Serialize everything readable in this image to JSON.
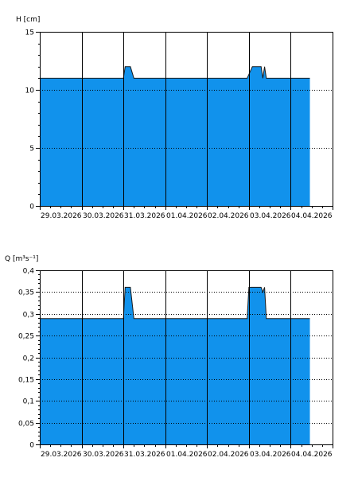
{
  "colors": {
    "fill": "#1192ec",
    "outline": "#1a1a1a",
    "frame": "#000000",
    "grid": "#000000"
  },
  "chart_data": [
    {
      "id": "h",
      "type": "area",
      "title": "",
      "ylabel": "H [cm]",
      "xlabel": "",
      "ylim": [
        0,
        15
      ],
      "xlim": [
        "2026-03-29",
        "2026-04-05"
      ],
      "y_ticks": [
        {
          "value": 0,
          "label": "0"
        },
        {
          "value": 5,
          "label": "5"
        },
        {
          "value": 10,
          "label": "10"
        },
        {
          "value": 15,
          "label": "15"
        }
      ],
      "minor_tick_step": 1,
      "x_ticks": [
        {
          "date": "2026-03-29",
          "label": "29.03.2026"
        },
        {
          "date": "2026-03-30",
          "label": "30.03.2026"
        },
        {
          "date": "2026-03-31",
          "label": "31.03.2026"
        },
        {
          "date": "2026-04-01",
          "label": "01.04.2026"
        },
        {
          "date": "2026-04-02",
          "label": "02.04.2026"
        },
        {
          "date": "2026-04-03",
          "label": "03.04.2026"
        },
        {
          "date": "2026-04-04",
          "label": "04.04.2026"
        }
      ],
      "grid_x": "solid",
      "grid_y": "dotted",
      "points": [
        {
          "x": "2026-03-29 00:00",
          "y": 11
        },
        {
          "x": "2026-03-31 00:00",
          "y": 11
        },
        {
          "x": "2026-03-31 01:00",
          "y": 12
        },
        {
          "x": "2026-03-31 04:00",
          "y": 12
        },
        {
          "x": "2026-03-31 06:00",
          "y": 11
        },
        {
          "x": "2026-04-02 23:00",
          "y": 11
        },
        {
          "x": "2026-04-03 02:00",
          "y": 12
        },
        {
          "x": "2026-04-03 07:00",
          "y": 12
        },
        {
          "x": "2026-04-03 08:00",
          "y": 11
        },
        {
          "x": "2026-04-03 09:00",
          "y": 12
        },
        {
          "x": "2026-04-03 10:00",
          "y": 11
        },
        {
          "x": "2026-04-04 11:00",
          "y": 11
        }
      ]
    },
    {
      "id": "q",
      "type": "area",
      "title": "",
      "ylabel": "Q [m³s⁻¹]",
      "xlabel": "",
      "ylim": [
        0,
        0.4
      ],
      "xlim": [
        "2026-03-29",
        "2026-04-05"
      ],
      "y_ticks": [
        {
          "value": 0,
          "label": "0"
        },
        {
          "value": 0.05,
          "label": "0,05"
        },
        {
          "value": 0.1,
          "label": "0,1"
        },
        {
          "value": 0.15,
          "label": "0,15"
        },
        {
          "value": 0.2,
          "label": "0,2"
        },
        {
          "value": 0.25,
          "label": "0,25"
        },
        {
          "value": 0.3,
          "label": "0,3"
        },
        {
          "value": 0.35,
          "label": "0,35"
        },
        {
          "value": 0.4,
          "label": "0,4"
        }
      ],
      "minor_tick_step": 0.01,
      "x_ticks": [
        {
          "date": "2026-03-29",
          "label": "29.03.2026"
        },
        {
          "date": "2026-03-30",
          "label": "30.03.2026"
        },
        {
          "date": "2026-03-31",
          "label": "31.03.2026"
        },
        {
          "date": "2026-04-01",
          "label": "01.04.2026"
        },
        {
          "date": "2026-04-02",
          "label": "02.04.2026"
        },
        {
          "date": "2026-04-03",
          "label": "03.04.2026"
        },
        {
          "date": "2026-04-04",
          "label": "04.04.2026"
        }
      ],
      "grid_x": "solid",
      "grid_y": "dotted",
      "points": [
        {
          "x": "2026-03-29 00:00",
          "y": 0.289
        },
        {
          "x": "2026-03-31 00:00",
          "y": 0.289
        },
        {
          "x": "2026-03-31 01:00",
          "y": 0.361
        },
        {
          "x": "2026-03-31 04:00",
          "y": 0.361
        },
        {
          "x": "2026-03-31 06:00",
          "y": 0.289
        },
        {
          "x": "2026-04-02 23:00",
          "y": 0.289
        },
        {
          "x": "2026-04-03 00:00",
          "y": 0.361
        },
        {
          "x": "2026-04-03 07:00",
          "y": 0.361
        },
        {
          "x": "2026-04-03 08:00",
          "y": 0.35
        },
        {
          "x": "2026-04-03 09:00",
          "y": 0.361
        },
        {
          "x": "2026-04-03 10:00",
          "y": 0.289
        },
        {
          "x": "2026-04-04 11:00",
          "y": 0.289
        }
      ]
    }
  ]
}
